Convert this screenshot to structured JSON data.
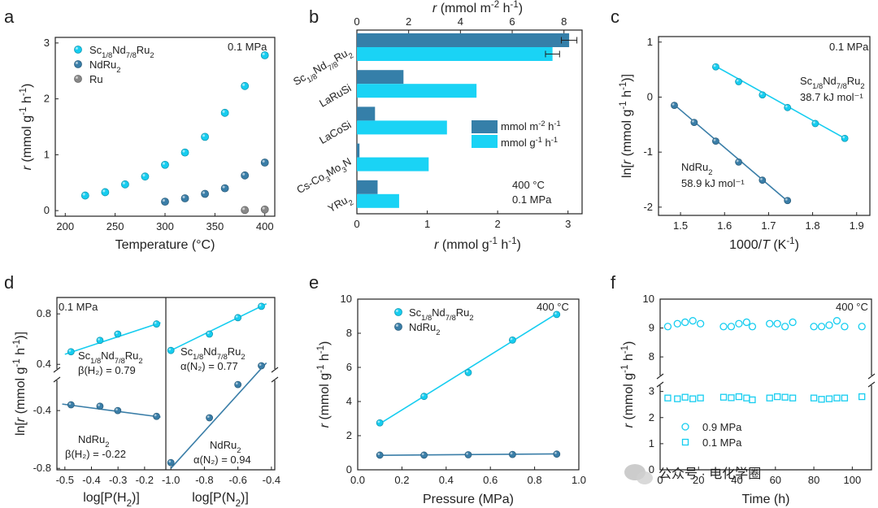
{
  "colors": {
    "cyan": "#16CDF0",
    "blue": "#3A7EA8",
    "gray": "#888888",
    "cyan_bar": "#1AD3F5",
    "blue_bar": "#357FA9"
  },
  "chart_data": [
    {
      "id": "a",
      "type": "scatter",
      "xlabel": "Temperature (°C)",
      "ylabel": "r (mmol g⁻¹ h⁻¹)",
      "xlim": [
        190,
        410
      ],
      "ylim": [
        -0.1,
        3.1
      ],
      "xticks": [
        200,
        250,
        300,
        350,
        400
      ],
      "yticks": [
        0,
        1,
        2,
        3
      ],
      "annotation": "0.1 MPa",
      "series": [
        {
          "name": "Sc1/8Nd7/8Ru2",
          "color": "#16CDF0",
          "x": [
            220,
            240,
            260,
            280,
            300,
            320,
            340,
            360,
            380,
            400
          ],
          "y": [
            0.27,
            0.33,
            0.47,
            0.61,
            0.82,
            1.04,
            1.32,
            1.75,
            2.23,
            2.78
          ]
        },
        {
          "name": "NdRu2",
          "color": "#3A7EA8",
          "x": [
            300,
            320,
            340,
            360,
            380,
            400
          ],
          "y": [
            0.16,
            0.22,
            0.3,
            0.4,
            0.63,
            0.86
          ]
        },
        {
          "name": "Ru",
          "color": "#888888",
          "x": [
            380,
            400
          ],
          "y": [
            0.01,
            0.02
          ]
        }
      ]
    },
    {
      "id": "b",
      "type": "bar",
      "categories": [
        "Sc1/8Nd7/8Ru2",
        "LaRuSi",
        "LaCoSi",
        "Cs-Co3Mo3N",
        "YRu2"
      ],
      "top_axis_label": "r (mmol m⁻² h⁻¹)",
      "bottom_axis_label": "r (mmol g⁻¹ h⁻¹)",
      "top_xlim": [
        0,
        8.7
      ],
      "bottom_xlim": [
        0,
        3.2
      ],
      "top_ticks": [
        0,
        2,
        4,
        6,
        8
      ],
      "bottom_ticks": [
        0,
        1,
        2,
        3
      ],
      "annotation": [
        "400 °C",
        "0.1 MPa"
      ],
      "series": [
        {
          "name": "mmol m⁻² h⁻¹",
          "axis": "top",
          "color": "#357FA9",
          "values": [
            8.2,
            1.8,
            0.7,
            0.1,
            0.8
          ],
          "errors": [
            0.6,
            0,
            0,
            0,
            0
          ]
        },
        {
          "name": "mmol g⁻¹ h⁻¹",
          "axis": "bottom",
          "color": "#1AD3F5",
          "values": [
            2.78,
            1.7,
            1.28,
            1.02,
            0.6
          ],
          "errors": [
            0.2,
            0,
            0,
            0,
            0
          ]
        }
      ]
    },
    {
      "id": "c",
      "type": "scatter",
      "xlabel": "1000/T (K⁻¹)",
      "ylabel": "ln[r (mmol g⁻¹ h⁻¹)]",
      "xlim": [
        1.45,
        1.93
      ],
      "ylim": [
        -2.15,
        1.1
      ],
      "xticks": [
        1.5,
        1.6,
        1.7,
        1.8,
        1.9
      ],
      "yticks": [
        -2,
        -1,
        0,
        1
      ],
      "annotation": "0.1 MPa",
      "series": [
        {
          "name": "Sc1/8Nd7/8Ru2",
          "color": "#16CDF0",
          "label": "38.7 kJ mol⁻¹",
          "x": [
            1.58,
            1.632,
            1.686,
            1.743,
            1.806,
            1.873
          ],
          "y": [
            0.55,
            0.28,
            0.04,
            -0.19,
            -0.48,
            -0.75
          ],
          "fit": [
            [
              1.58,
              0.56
            ],
            [
              1.873,
              -0.75
            ]
          ]
        },
        {
          "name": "NdRu2",
          "color": "#3A7EA8",
          "label": "58.9 kJ mol⁻¹",
          "x": [
            1.486,
            1.531,
            1.58,
            1.632,
            1.686,
            1.743
          ],
          "y": [
            -0.15,
            -0.46,
            -0.8,
            -1.18,
            -1.51,
            -1.88
          ],
          "fit": [
            [
              1.486,
              -0.14
            ],
            [
              1.743,
              -1.89
            ]
          ]
        }
      ]
    },
    {
      "id": "d1",
      "type": "scatter",
      "xlabel": "log[P(H2)]",
      "ylabel": "ln[r (mmol g⁻¹ h⁻¹)]",
      "xlim": [
        -0.53,
        -0.12
      ],
      "xticks": [
        -0.5,
        -0.4,
        -0.3,
        -0.2
      ],
      "upper_ylim": [
        0.35,
        0.93
      ],
      "upper_yticks": [
        0.4,
        0.8
      ],
      "lower_ylim": [
        -0.81,
        -0.18
      ],
      "lower_yticks": [
        -0.4,
        -0.8
      ],
      "annotation": "0.1 MPa",
      "series": [
        {
          "name": "Sc1/8Nd7/8Ru2",
          "color": "#16CDF0",
          "label": "β(H2) = 0.79",
          "panel": "upper",
          "x": [
            -0.477,
            -0.368,
            -0.301,
            -0.155
          ],
          "y": [
            0.5,
            0.59,
            0.64,
            0.72
          ],
          "fit": [
            [
              -0.5,
              0.48
            ],
            [
              -0.14,
              0.73
            ]
          ]
        },
        {
          "name": "NdRu2",
          "color": "#3A7EA8",
          "label": "β(H2) = -0.22",
          "panel": "lower",
          "x": [
            -0.477,
            -0.368,
            -0.301,
            -0.155
          ],
          "y": [
            -0.36,
            -0.37,
            -0.4,
            -0.44
          ],
          "fit": [
            [
              -0.51,
              -0.355
            ],
            [
              -0.14,
              -0.445
            ]
          ]
        }
      ]
    },
    {
      "id": "d2",
      "type": "scatter",
      "xlabel": "log[P(N2)]",
      "xlim": [
        -1.03,
        -0.38
      ],
      "xticks": [
        -1.0,
        -0.8,
        -0.6,
        -0.4
      ],
      "upper_ylim": [
        0.35,
        0.93
      ],
      "lower_ylim": [
        -0.81,
        -0.18
      ],
      "series": [
        {
          "name": "Sc1/8Nd7/8Ru2",
          "color": "#16CDF0",
          "label": "α(N2) = 0.77",
          "panel": "upper",
          "x": [
            -1.0,
            -0.77,
            -0.6,
            -0.46
          ],
          "y": [
            0.51,
            0.64,
            0.77,
            0.86
          ],
          "fit": [
            [
              -1.0,
              0.51
            ],
            [
              -0.43,
              0.88
            ]
          ]
        },
        {
          "name": "NdRu2",
          "color": "#3A7EA8",
          "label": "α(N2) = 0.94",
          "panel": "lower",
          "x": [
            -1.0,
            -0.77,
            -0.6,
            -0.46
          ],
          "y": [
            -0.76,
            -0.45,
            -0.22,
            -0.09
          ],
          "fit": [
            [
              -1.0,
              -0.8
            ],
            [
              -0.43,
              -0.07
            ]
          ]
        }
      ]
    },
    {
      "id": "e",
      "type": "scatter",
      "xlabel": "Pressure (MPa)",
      "ylabel": "r (mmol g⁻¹ h⁻¹)",
      "xlim": [
        0,
        1.0
      ],
      "ylim": [
        0,
        10
      ],
      "xticks": [
        0.0,
        0.2,
        0.4,
        0.6,
        0.8,
        1.0
      ],
      "yticks": [
        0,
        2,
        4,
        6,
        8,
        10
      ],
      "annotation": "400 °C",
      "series": [
        {
          "name": "Sc1/8Nd7/8Ru2",
          "color": "#16CDF0",
          "x": [
            0.1,
            0.3,
            0.5,
            0.7,
            0.9
          ],
          "y": [
            2.75,
            4.3,
            5.7,
            7.6,
            9.1
          ],
          "fit": [
            [
              0.1,
              2.7
            ],
            [
              0.9,
              9.15
            ]
          ]
        },
        {
          "name": "NdRu2",
          "color": "#3A7EA8",
          "x": [
            0.1,
            0.3,
            0.5,
            0.7,
            0.9
          ],
          "y": [
            0.86,
            0.86,
            0.88,
            0.9,
            0.92
          ],
          "fit": [
            [
              0.1,
              0.85
            ],
            [
              0.9,
              0.93
            ]
          ]
        }
      ]
    },
    {
      "id": "f",
      "type": "scatter",
      "xlabel": "Time (h)",
      "ylabel": "r (mmol g⁻¹ h⁻¹)",
      "xlim": [
        0,
        110
      ],
      "xticks": [
        0,
        20,
        40,
        60,
        80,
        100
      ],
      "upper_ylim": [
        7.3,
        10
      ],
      "upper_yticks": [
        8,
        9,
        10
      ],
      "lower_ylim": [
        0,
        3.3
      ],
      "lower_yticks": [
        0,
        1,
        2,
        3
      ],
      "annotation": "400 °C",
      "series": [
        {
          "name": "0.9 MPa",
          "marker": "circle",
          "color": "#16CDF0",
          "panel": "upper",
          "x": [
            4,
            9,
            13,
            17,
            21,
            33,
            37,
            41,
            45,
            48,
            57,
            61,
            65,
            69,
            80,
            84,
            88,
            92,
            96,
            105
          ],
          "y": [
            9.05,
            9.15,
            9.2,
            9.25,
            9.15,
            9.05,
            9.05,
            9.15,
            9.2,
            9.05,
            9.15,
            9.15,
            9.05,
            9.2,
            9.05,
            9.05,
            9.1,
            9.25,
            9.05,
            9.05
          ]
        },
        {
          "name": "0.1 MPa",
          "marker": "square",
          "color": "#16CDF0",
          "panel": "lower",
          "x": [
            4,
            9,
            13,
            17,
            21,
            33,
            37,
            41,
            45,
            48,
            57,
            61,
            65,
            69,
            80,
            84,
            88,
            92,
            96,
            105
          ],
          "y": [
            2.75,
            2.72,
            2.78,
            2.72,
            2.75,
            2.78,
            2.76,
            2.8,
            2.75,
            2.68,
            2.75,
            2.8,
            2.78,
            2.75,
            2.75,
            2.7,
            2.72,
            2.75,
            2.75,
            2.8
          ]
        }
      ]
    }
  ],
  "panels": {
    "a": {
      "letter": "a",
      "ylabel": "r (mmol g⁻¹ h⁻¹)",
      "xlabel": "Temperature (°C)",
      "annotation": "0.1 MPa"
    },
    "b": {
      "letter": "b",
      "top_label": "r (mmol m⁻² h⁻¹)",
      "bottom_label": "r (mmol g⁻¹ h⁻¹)",
      "legend": [
        "mmol m⁻² h⁻¹",
        "mmol g⁻¹ h⁻¹"
      ],
      "annotation": [
        "400 °C",
        "0.1 MPa"
      ]
    },
    "c": {
      "letter": "c",
      "ylabel": "ln[r (mmol g⁻¹ h⁻¹)]",
      "xlabel": "1000/T (K⁻¹)",
      "annotation": "0.1 MPa",
      "sc_label": "38.7 kJ mol⁻¹",
      "nd_label": "58.9 kJ mol⁻¹"
    },
    "d": {
      "letter": "d",
      "ylabel": "ln[r (mmol g⁻¹ h⁻¹)]",
      "xlabel_left": "log[P(H₂)]",
      "xlabel_right": "log[P(N₂)]",
      "annotation": "0.1 MPa",
      "sc_beta": "β(H₂) = 0.79",
      "nd_beta": "β(H₂) = -0.22",
      "sc_alpha": "α(N₂) = 0.77",
      "nd_alpha": "α(N₂) = 0.94"
    },
    "e": {
      "letter": "e",
      "ylabel": "r (mmol g⁻¹ h⁻¹)",
      "xlabel": "Pressure (MPa)",
      "annotation": "400 °C"
    },
    "f": {
      "letter": "f",
      "ylabel": "r (mmol g⁻¹ h⁻¹)",
      "xlabel": "Time (h)",
      "annotation": "400 °C",
      "legend": [
        "0.9 MPa",
        "0.1 MPa"
      ]
    }
  },
  "names": {
    "sc": "Sc1/8Nd7/8Ru2",
    "nd": "NdRu2",
    "ru": "Ru",
    "lacosi": "LaCoSi",
    "laruSi": "LaRuSi",
    "cs": "Cs-Co3Mo3N",
    "yru": "YRu2"
  },
  "watermark": "公众号 · 电化学圈"
}
